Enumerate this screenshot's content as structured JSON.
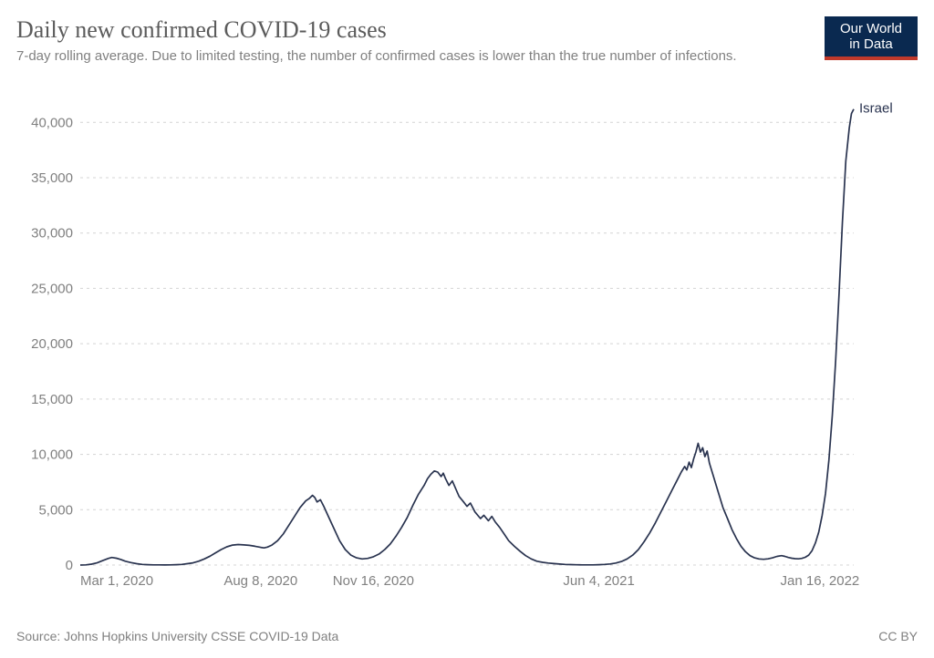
{
  "header": {
    "title": "Daily new confirmed COVID-19 cases",
    "subtitle": "7-day rolling average. Due to limited testing, the number of confirmed cases is lower than the true number of infections."
  },
  "logo": {
    "line1": "Our World",
    "line2": "in Data"
  },
  "footer": {
    "source": "Source: Johns Hopkins University CSSE COVID-19 Data",
    "license": "CC BY"
  },
  "chart": {
    "type": "line",
    "background_color": "#ffffff",
    "grid_color": "#d4d4d4",
    "axis_text_color": "#808080",
    "axis_fontsize": 15,
    "line_width": 1.7,
    "y": {
      "min": 0,
      "max": 42000,
      "ticks": [
        0,
        5000,
        10000,
        15000,
        20000,
        25000,
        30000,
        35000,
        40000
      ],
      "tick_labels": [
        "0",
        "5,000",
        "10,000",
        "15,000",
        "20,000",
        "25,000",
        "30,000",
        "35,000",
        "40,000"
      ]
    },
    "x": {
      "min": 0,
      "max": 686,
      "ticks": [
        0,
        160,
        260,
        460,
        656
      ],
      "tick_labels": [
        "Mar 1, 2020",
        "Aug 8, 2020",
        "Nov 16, 2020",
        "Jun 4, 2021",
        "Jan 16, 2022"
      ]
    },
    "series": [
      {
        "name": "Israel",
        "label": "Israel",
        "color": "#29334f",
        "data": [
          [
            0,
            0
          ],
          [
            5,
            20
          ],
          [
            10,
            80
          ],
          [
            15,
            200
          ],
          [
            20,
            400
          ],
          [
            25,
            600
          ],
          [
            28,
            680
          ],
          [
            32,
            620
          ],
          [
            36,
            500
          ],
          [
            40,
            350
          ],
          [
            45,
            220
          ],
          [
            50,
            120
          ],
          [
            55,
            60
          ],
          [
            60,
            30
          ],
          [
            65,
            20
          ],
          [
            70,
            15
          ],
          [
            75,
            12
          ],
          [
            80,
            18
          ],
          [
            85,
            30
          ],
          [
            90,
            60
          ],
          [
            95,
            120
          ],
          [
            100,
            200
          ],
          [
            105,
            350
          ],
          [
            110,
            550
          ],
          [
            115,
            800
          ],
          [
            120,
            1100
          ],
          [
            125,
            1400
          ],
          [
            130,
            1650
          ],
          [
            135,
            1800
          ],
          [
            140,
            1850
          ],
          [
            145,
            1820
          ],
          [
            150,
            1780
          ],
          [
            155,
            1700
          ],
          [
            160,
            1600
          ],
          [
            163,
            1550
          ],
          [
            166,
            1620
          ],
          [
            170,
            1800
          ],
          [
            175,
            2200
          ],
          [
            180,
            2800
          ],
          [
            185,
            3600
          ],
          [
            190,
            4400
          ],
          [
            195,
            5200
          ],
          [
            200,
            5800
          ],
          [
            203,
            6000
          ],
          [
            206,
            6300
          ],
          [
            208,
            6100
          ],
          [
            210,
            5700
          ],
          [
            213,
            5900
          ],
          [
            216,
            5300
          ],
          [
            220,
            4400
          ],
          [
            225,
            3300
          ],
          [
            230,
            2200
          ],
          [
            235,
            1400
          ],
          [
            240,
            900
          ],
          [
            245,
            650
          ],
          [
            250,
            550
          ],
          [
            255,
            600
          ],
          [
            260,
            750
          ],
          [
            265,
            1000
          ],
          [
            270,
            1400
          ],
          [
            275,
            1900
          ],
          [
            280,
            2600
          ],
          [
            285,
            3400
          ],
          [
            290,
            4300
          ],
          [
            295,
            5400
          ],
          [
            300,
            6400
          ],
          [
            305,
            7200
          ],
          [
            308,
            7800
          ],
          [
            311,
            8200
          ],
          [
            314,
            8500
          ],
          [
            317,
            8400
          ],
          [
            320,
            8000
          ],
          [
            322,
            8300
          ],
          [
            324,
            7800
          ],
          [
            327,
            7200
          ],
          [
            330,
            7600
          ],
          [
            333,
            6900
          ],
          [
            336,
            6200
          ],
          [
            340,
            5700
          ],
          [
            343,
            5300
          ],
          [
            346,
            5600
          ],
          [
            350,
            4800
          ],
          [
            355,
            4200
          ],
          [
            358,
            4500
          ],
          [
            362,
            4000
          ],
          [
            365,
            4400
          ],
          [
            368,
            3900
          ],
          [
            372,
            3400
          ],
          [
            376,
            2800
          ],
          [
            380,
            2200
          ],
          [
            385,
            1700
          ],
          [
            390,
            1250
          ],
          [
            395,
            850
          ],
          [
            400,
            550
          ],
          [
            405,
            350
          ],
          [
            410,
            250
          ],
          [
            415,
            180
          ],
          [
            420,
            130
          ],
          [
            425,
            90
          ],
          [
            430,
            60
          ],
          [
            435,
            40
          ],
          [
            440,
            25
          ],
          [
            445,
            18
          ],
          [
            450,
            15
          ],
          [
            455,
            18
          ],
          [
            460,
            30
          ],
          [
            465,
            55
          ],
          [
            470,
            100
          ],
          [
            475,
            180
          ],
          [
            480,
            320
          ],
          [
            485,
            550
          ],
          [
            490,
            900
          ],
          [
            495,
            1400
          ],
          [
            500,
            2100
          ],
          [
            505,
            2900
          ],
          [
            510,
            3800
          ],
          [
            515,
            4800
          ],
          [
            520,
            5800
          ],
          [
            525,
            6800
          ],
          [
            530,
            7800
          ],
          [
            533,
            8400
          ],
          [
            536,
            8900
          ],
          [
            538,
            8600
          ],
          [
            540,
            9300
          ],
          [
            542,
            8800
          ],
          [
            544,
            9600
          ],
          [
            546,
            10200
          ],
          [
            548,
            11000
          ],
          [
            550,
            10200
          ],
          [
            552,
            10600
          ],
          [
            554,
            9800
          ],
          [
            556,
            10300
          ],
          [
            558,
            9200
          ],
          [
            561,
            8200
          ],
          [
            564,
            7200
          ],
          [
            567,
            6200
          ],
          [
            570,
            5200
          ],
          [
            574,
            4200
          ],
          [
            578,
            3200
          ],
          [
            582,
            2400
          ],
          [
            586,
            1700
          ],
          [
            590,
            1200
          ],
          [
            594,
            850
          ],
          [
            598,
            650
          ],
          [
            602,
            550
          ],
          [
            606,
            520
          ],
          [
            610,
            560
          ],
          [
            614,
            650
          ],
          [
            618,
            780
          ],
          [
            622,
            850
          ],
          [
            625,
            780
          ],
          [
            628,
            680
          ],
          [
            631,
            620
          ],
          [
            634,
            580
          ],
          [
            637,
            560
          ],
          [
            640,
            600
          ],
          [
            643,
            700
          ],
          [
            646,
            900
          ],
          [
            649,
            1300
          ],
          [
            652,
            2000
          ],
          [
            655,
            3000
          ],
          [
            658,
            4500
          ],
          [
            661,
            6500
          ],
          [
            664,
            9500
          ],
          [
            667,
            13500
          ],
          [
            670,
            18500
          ],
          [
            673,
            24500
          ],
          [
            676,
            31000
          ],
          [
            679,
            36500
          ],
          [
            682,
            39500
          ],
          [
            684,
            40800
          ],
          [
            686,
            41200
          ]
        ]
      }
    ]
  }
}
